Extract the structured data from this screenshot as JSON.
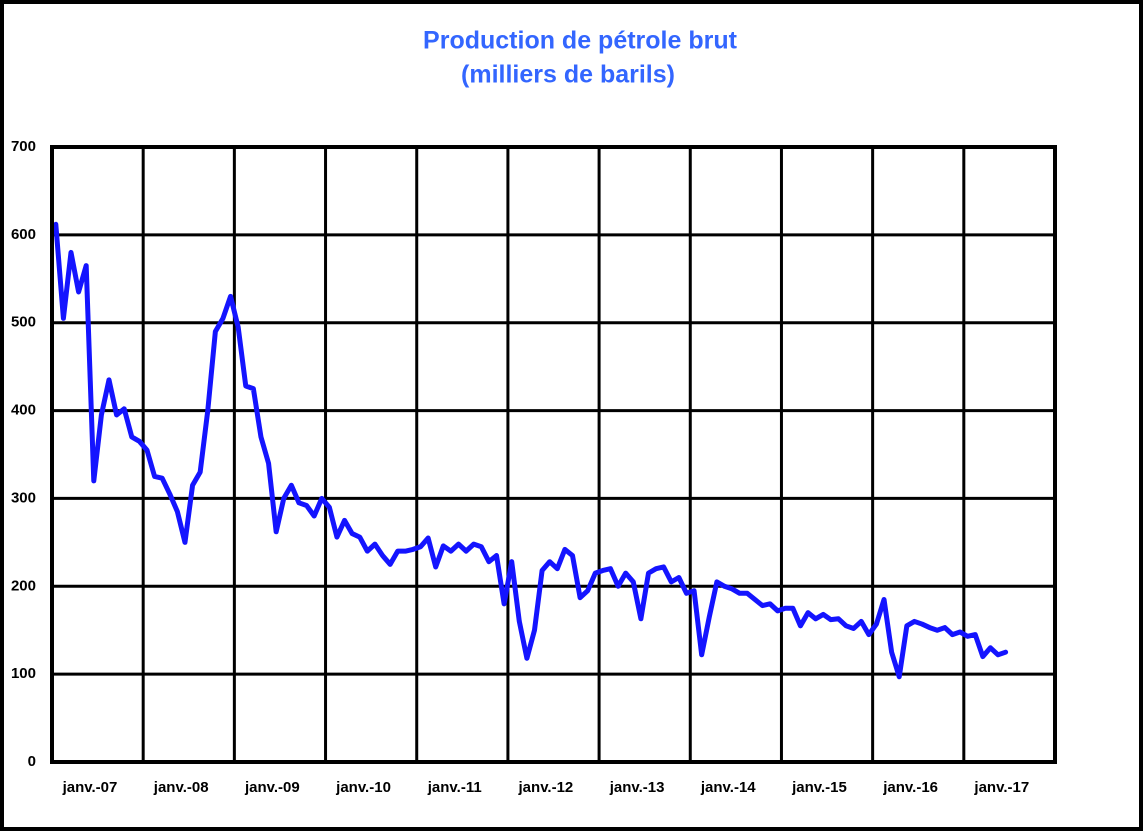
{
  "chart_data": {
    "type": "line",
    "title": "Production de pétrole brut",
    "subtitle": "(milliers de barils)",
    "categories": [
      "janv.-07",
      null,
      null,
      null,
      null,
      null,
      null,
      null,
      null,
      null,
      null,
      null,
      "janv.-08",
      null,
      null,
      null,
      null,
      null,
      null,
      null,
      null,
      null,
      null,
      null,
      "janv.-09",
      null,
      null,
      null,
      null,
      null,
      null,
      null,
      null,
      null,
      null,
      null,
      "janv.-10",
      null,
      null,
      null,
      null,
      null,
      null,
      null,
      null,
      null,
      null,
      null,
      "janv.-11",
      null,
      null,
      null,
      null,
      null,
      null,
      null,
      null,
      null,
      null,
      null,
      "janv.-12",
      null,
      null,
      null,
      null,
      null,
      null,
      null,
      null,
      null,
      null,
      null,
      "janv.-13",
      null,
      null,
      null,
      null,
      null,
      null,
      null,
      null,
      null,
      null,
      null,
      "janv.-14",
      null,
      null,
      null,
      null,
      null,
      null,
      null,
      null,
      null,
      null,
      null,
      "janv.-15",
      null,
      null,
      null,
      null,
      null,
      null,
      null,
      null,
      null,
      null,
      null,
      "janv.-16",
      null,
      null,
      null,
      null,
      null,
      null,
      null,
      null,
      null,
      null,
      null,
      "janv.-17",
      null,
      null,
      null,
      null,
      null,
      null,
      null,
      null,
      null,
      null,
      null
    ],
    "values": [
      612,
      505,
      580,
      535,
      565,
      320,
      395,
      435,
      395,
      402,
      370,
      365,
      355,
      325,
      323,
      305,
      285,
      250,
      315,
      330,
      400,
      490,
      505,
      530,
      495,
      428,
      425,
      370,
      340,
      262,
      300,
      315,
      295,
      292,
      280,
      300,
      290,
      256,
      275,
      260,
      256,
      240,
      248,
      235,
      225,
      240,
      240,
      242,
      245,
      255,
      222,
      246,
      240,
      248,
      240,
      248,
      245,
      228,
      235,
      180,
      228,
      160,
      118,
      150,
      218,
      228,
      220,
      242,
      235,
      187,
      195,
      215,
      218,
      220,
      200,
      215,
      205,
      163,
      215,
      220,
      222,
      205,
      210,
      192,
      195,
      122,
      165,
      205,
      200,
      197,
      192,
      192,
      185,
      178,
      180,
      172,
      175,
      175,
      155,
      170,
      163,
      168,
      162,
      163,
      155,
      152,
      160,
      145,
      157,
      185,
      125,
      97,
      155,
      160,
      157,
      153,
      150,
      153,
      145,
      148,
      143,
      145,
      120,
      130,
      122,
      125,
      null,
      null,
      null,
      null,
      null,
      null
    ],
    "color": "#1414ff",
    "ylim": [
      0,
      700
    ],
    "yticks": [
      0,
      100,
      200,
      300,
      400,
      500,
      600,
      700
    ],
    "grid": true
  }
}
